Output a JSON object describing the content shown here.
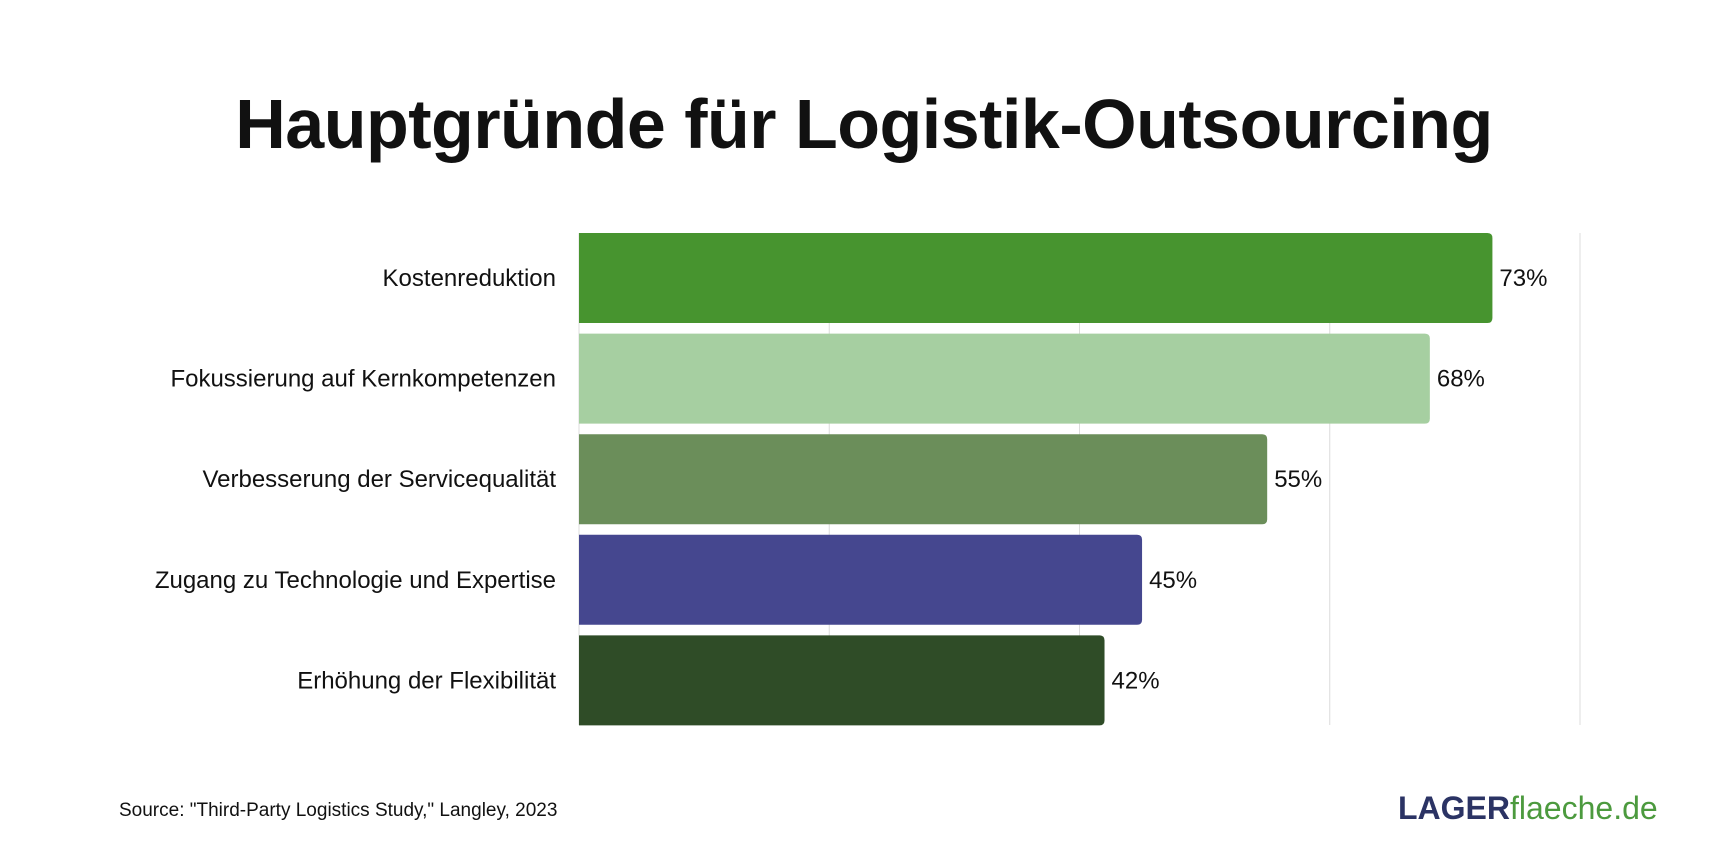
{
  "chart_data": {
    "type": "bar",
    "orientation": "horizontal",
    "title": "Hauptgründe für Logistik-Outsourcing",
    "categories": [
      "Kostenreduktion",
      "Fokussierung auf Kernkompetenzen",
      "Verbesserung der Servicequalität",
      "Zugang zu Technologie und Expertise",
      "Erhöhung der Flexibilität"
    ],
    "values": [
      73,
      68,
      55,
      45,
      42
    ],
    "value_labels": [
      "73%",
      "68%",
      "55%",
      "45%",
      "42%"
    ],
    "colors": [
      "#47942f",
      "#a6cfa1",
      "#6b8e5a",
      "#45478f",
      "#2f4c27"
    ],
    "xlim": [
      0,
      80
    ],
    "gridlines": [
      20,
      40,
      60,
      80
    ],
    "grid": true,
    "xlabel": "",
    "ylabel": ""
  },
  "source": "Source: \"Third-Party Logistics Study,\" Langley, 2023",
  "logo": {
    "part1": "LAGER",
    "part2": "flaeche.de"
  }
}
